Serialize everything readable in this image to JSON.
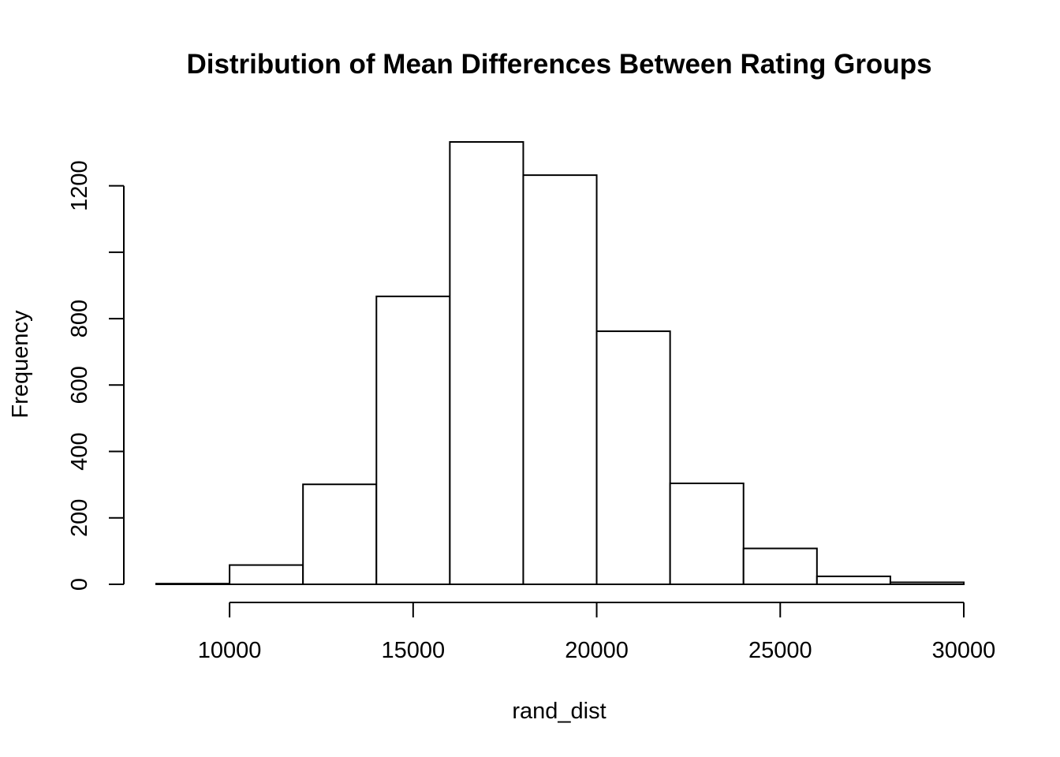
{
  "chart_data": {
    "type": "bar",
    "subtype": "histogram",
    "title": "Distribution of Mean Differences Between Rating Groups",
    "xlabel": "rand_dist",
    "ylabel": "Frequency",
    "bins": [
      {
        "start": 8000,
        "end": 10000,
        "count": 2
      },
      {
        "start": 10000,
        "end": 12000,
        "count": 58
      },
      {
        "start": 12000,
        "end": 14000,
        "count": 301
      },
      {
        "start": 14000,
        "end": 16000,
        "count": 867
      },
      {
        "start": 16000,
        "end": 18000,
        "count": 1332
      },
      {
        "start": 18000,
        "end": 20000,
        "count": 1232
      },
      {
        "start": 20000,
        "end": 22000,
        "count": 762
      },
      {
        "start": 22000,
        "end": 24000,
        "count": 304
      },
      {
        "start": 24000,
        "end": 26000,
        "count": 108
      },
      {
        "start": 26000,
        "end": 28000,
        "count": 24
      },
      {
        "start": 28000,
        "end": 30000,
        "count": 6
      }
    ],
    "x_ticks": [
      10000,
      15000,
      20000,
      25000,
      30000
    ],
    "y_ticks": [
      0,
      200,
      400,
      600,
      800,
      1000,
      1200
    ],
    "y_tick_labels": [
      "0",
      "200",
      "400",
      "600",
      "800",
      "",
      "1200"
    ],
    "xlim": [
      8000,
      30000
    ],
    "ylim": [
      0,
      1332
    ],
    "grid": false,
    "legend": "none"
  }
}
